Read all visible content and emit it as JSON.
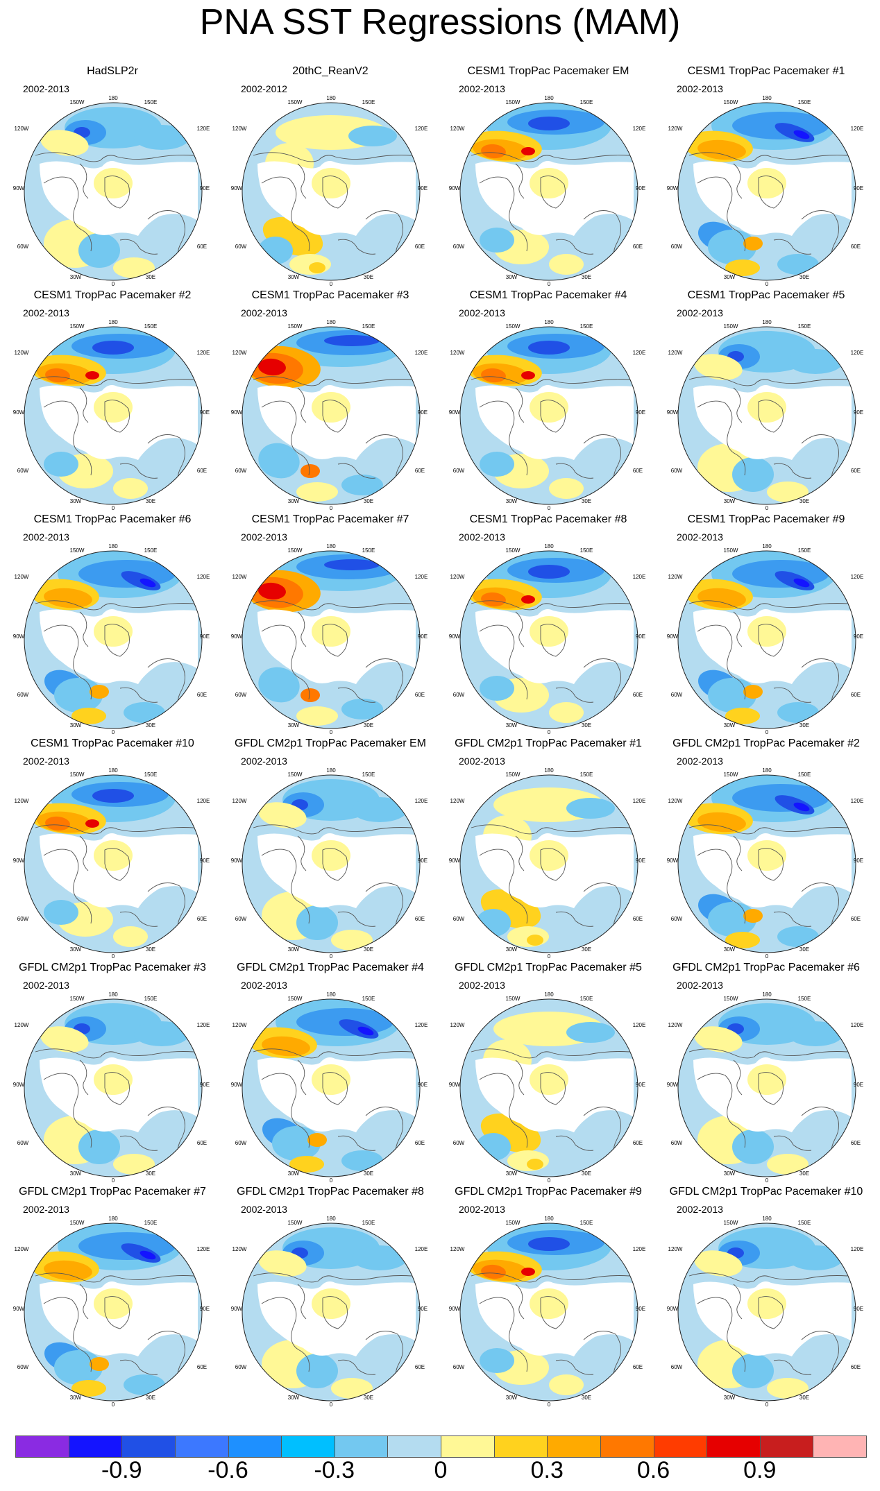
{
  "title": "PNA SST Regressions (MAM)",
  "lon_labels": [
    "180",
    "150W",
    "150E",
    "120W",
    "120E",
    "90W",
    "90E",
    "60W",
    "60E",
    "30W",
    "30E",
    "0"
  ],
  "panels": [
    {
      "name": "HadSLP2r",
      "period": "2002-2013",
      "style": 0
    },
    {
      "name": "20thC_ReanV2",
      "period": "2002-2012",
      "style": 1
    },
    {
      "name": "CESM1 TropPac Pacemaker EM",
      "period": "2002-2013",
      "style": 2
    },
    {
      "name": "CESM1 TropPac Pacemaker #1",
      "period": "2002-2013",
      "style": 3
    },
    {
      "name": "CESM1 TropPac Pacemaker #2",
      "period": "2002-2013",
      "style": 2
    },
    {
      "name": "CESM1 TropPac Pacemaker #3",
      "period": "2002-2013",
      "style": 4
    },
    {
      "name": "CESM1 TropPac Pacemaker #4",
      "period": "2002-2013",
      "style": 2
    },
    {
      "name": "CESM1 TropPac Pacemaker #5",
      "period": "2002-2013",
      "style": 0
    },
    {
      "name": "CESM1 TropPac Pacemaker #6",
      "period": "2002-2013",
      "style": 3
    },
    {
      "name": "CESM1 TropPac Pacemaker #7",
      "period": "2002-2013",
      "style": 4
    },
    {
      "name": "CESM1 TropPac Pacemaker #8",
      "period": "2002-2013",
      "style": 2
    },
    {
      "name": "CESM1 TropPac Pacemaker #9",
      "period": "2002-2013",
      "style": 3
    },
    {
      "name": "CESM1 TropPac Pacemaker #10",
      "period": "2002-2013",
      "style": 2
    },
    {
      "name": "GFDL CM2p1 TropPac Pacemaker EM",
      "period": "2002-2013",
      "style": 0
    },
    {
      "name": "GFDL CM2p1 TropPac Pacemaker #1",
      "period": "2002-2013",
      "style": 1
    },
    {
      "name": "GFDL CM2p1 TropPac Pacemaker #2",
      "period": "2002-2013",
      "style": 3
    },
    {
      "name": "GFDL CM2p1 TropPac Pacemaker #3",
      "period": "2002-2013",
      "style": 0
    },
    {
      "name": "GFDL CM2p1 TropPac Pacemaker #4",
      "period": "2002-2013",
      "style": 3
    },
    {
      "name": "GFDL CM2p1 TropPac Pacemaker #5",
      "period": "2002-2013",
      "style": 1
    },
    {
      "name": "GFDL CM2p1 TropPac Pacemaker #6",
      "period": "2002-2013",
      "style": 0
    },
    {
      "name": "GFDL CM2p1 TropPac Pacemaker #7",
      "period": "2002-2013",
      "style": 3
    },
    {
      "name": "GFDL CM2p1 TropPac Pacemaker #8",
      "period": "2002-2013",
      "style": 0
    },
    {
      "name": "GFDL CM2p1 TropPac Pacemaker #9",
      "period": "2002-2013",
      "style": 2
    },
    {
      "name": "GFDL CM2p1 TropPac Pacemaker #10",
      "period": "2002-2013",
      "style": 0
    }
  ],
  "colorbar": {
    "colors": [
      "#8a2be2",
      "#1414ff",
      "#2050e6",
      "#3c78ff",
      "#1e90ff",
      "#00bfff",
      "#73c8f0",
      "#b4dcf0",
      "#fff896",
      "#ffd21e",
      "#ffaa00",
      "#ff7800",
      "#ff3c00",
      "#e60000",
      "#c81e1e",
      "#ffb4b4"
    ],
    "labels": [
      "-0.9",
      "-0.6",
      "-0.3",
      "0",
      "0.3",
      "0.6",
      "0.9"
    ]
  },
  "palette": {
    "ocean_base": "#b4dcf0",
    "land": "#ffffff",
    "pale_yellow": "#fff896",
    "yellow": "#ffd21e",
    "orange": "#ffaa00",
    "dark_orange": "#ff7800",
    "red": "#e60000",
    "light_blue": "#73c8f0",
    "mid_blue": "#3c9bf0",
    "blue": "#2050e6",
    "dark_blue": "#1414ff",
    "purple": "#8a2be2",
    "coast": "#555555"
  }
}
